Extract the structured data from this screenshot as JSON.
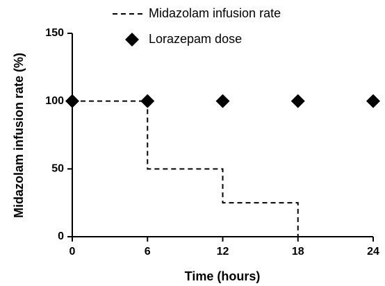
{
  "chart_data": {
    "type": "line",
    "xlabel": "Time (hours)",
    "ylabel": "Midazolam infusion rate (%)",
    "xlim": [
      0,
      24
    ],
    "xticks": [
      0,
      6,
      12,
      18,
      24
    ],
    "ylim": [
      0,
      150
    ],
    "yticks": [
      0,
      50,
      100,
      150
    ],
    "series": [
      {
        "name": "Midazolam infusion rate",
        "color": "#000000",
        "style": "dashed",
        "x": [
          0,
          6,
          6,
          12,
          12,
          18,
          18
        ],
        "values": [
          100,
          100,
          50,
          50,
          25,
          25,
          0
        ]
      },
      {
        "name": "Lorazepam dose",
        "color": "#000000",
        "style": "markers",
        "marker": "diamond",
        "x": [
          0,
          6,
          12,
          18,
          24
        ],
        "values": [
          100,
          100,
          100,
          100,
          100
        ]
      }
    ]
  }
}
